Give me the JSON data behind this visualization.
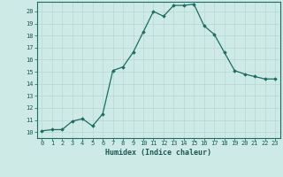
{
  "x": [
    0,
    1,
    2,
    3,
    4,
    5,
    6,
    7,
    8,
    9,
    10,
    11,
    12,
    13,
    14,
    15,
    16,
    17,
    18,
    19,
    20,
    21,
    22,
    23
  ],
  "y": [
    10.1,
    10.2,
    10.2,
    10.9,
    11.1,
    10.5,
    11.5,
    15.1,
    15.4,
    16.6,
    18.3,
    20.0,
    19.6,
    20.5,
    20.5,
    20.6,
    18.8,
    18.1,
    16.6,
    15.1,
    14.8,
    14.6,
    14.4,
    14.4
  ],
  "xlabel": "Humidex (Indice chaleur)",
  "xlim": [
    -0.5,
    23.5
  ],
  "ylim": [
    9.5,
    20.8
  ],
  "yticks": [
    10,
    11,
    12,
    13,
    14,
    15,
    16,
    17,
    18,
    19,
    20
  ],
  "xticks": [
    0,
    1,
    2,
    3,
    4,
    5,
    6,
    7,
    8,
    9,
    10,
    11,
    12,
    13,
    14,
    15,
    16,
    17,
    18,
    19,
    20,
    21,
    22,
    23
  ],
  "line_color": "#1a6e62",
  "bg_color": "#ceeae6",
  "grid_color": "#b8d8d4",
  "text_color": "#1a5a55"
}
